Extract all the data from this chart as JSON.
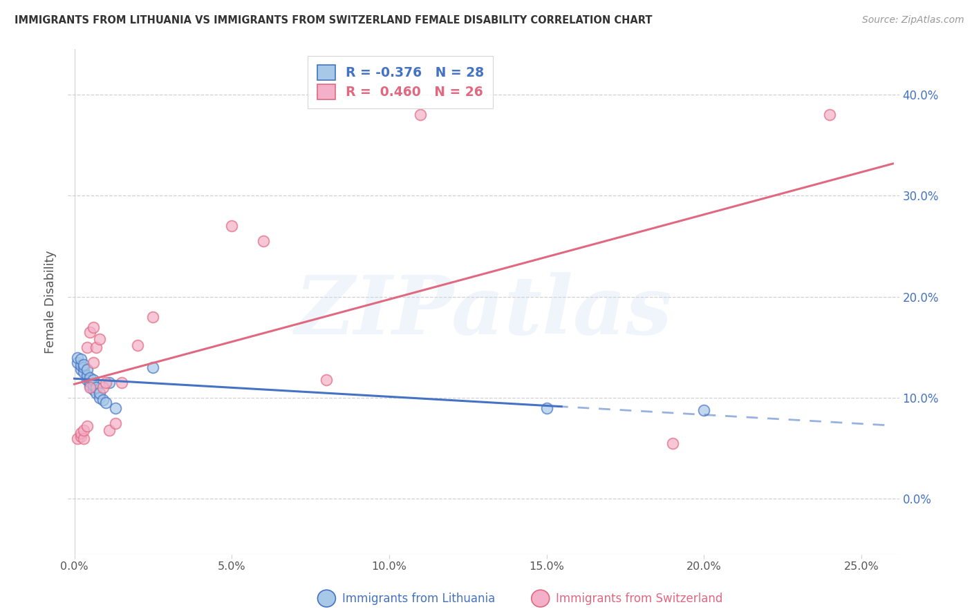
{
  "title": "IMMIGRANTS FROM LITHUANIA VS IMMIGRANTS FROM SWITZERLAND FEMALE DISABILITY CORRELATION CHART",
  "source": "Source: ZipAtlas.com",
  "ylabel": "Female Disability",
  "xlim": [
    -0.002,
    0.262
  ],
  "ylim": [
    -0.055,
    0.445
  ],
  "xlabel_vals": [
    0.0,
    0.05,
    0.1,
    0.15,
    0.2,
    0.25
  ],
  "xlabel_labels": [
    "0.0%",
    "5.0%",
    "10.0%",
    "15.0%",
    "20.0%",
    "25.0%"
  ],
  "ylabel_vals": [
    0.0,
    0.1,
    0.2,
    0.3,
    0.4
  ],
  "ylabel_labels": [
    "0.0%",
    "10.0%",
    "20.0%",
    "30.0%",
    "40.0%"
  ],
  "legend_line1": "R = -0.376   N = 28",
  "legend_line2": "R =  0.460   N = 26",
  "color_lith_fill": "#a8c8e8",
  "color_lith_edge": "#4472c4",
  "color_swiss_fill": "#f4b0c8",
  "color_swiss_edge": "#e06880",
  "watermark_text": "ZIPatlas",
  "lith_label": "Immigrants from Lithuania",
  "swiss_label": "Immigrants from Switzerland",
  "lith_x": [
    0.001,
    0.001,
    0.002,
    0.002,
    0.002,
    0.003,
    0.003,
    0.003,
    0.004,
    0.004,
    0.004,
    0.005,
    0.005,
    0.005,
    0.006,
    0.006,
    0.006,
    0.007,
    0.007,
    0.008,
    0.008,
    0.009,
    0.01,
    0.011,
    0.013,
    0.025,
    0.15,
    0.2
  ],
  "lith_y": [
    0.135,
    0.14,
    0.128,
    0.132,
    0.138,
    0.125,
    0.13,
    0.133,
    0.118,
    0.122,
    0.128,
    0.112,
    0.116,
    0.12,
    0.108,
    0.112,
    0.118,
    0.105,
    0.11,
    0.1,
    0.105,
    0.098,
    0.095,
    0.115,
    0.09,
    0.13,
    0.09,
    0.088
  ],
  "swiss_x": [
    0.001,
    0.002,
    0.002,
    0.003,
    0.003,
    0.004,
    0.004,
    0.005,
    0.005,
    0.006,
    0.006,
    0.007,
    0.008,
    0.009,
    0.01,
    0.011,
    0.013,
    0.015,
    0.02,
    0.025,
    0.05,
    0.06,
    0.08,
    0.11,
    0.19,
    0.24
  ],
  "swiss_y": [
    0.06,
    0.062,
    0.065,
    0.06,
    0.068,
    0.072,
    0.15,
    0.11,
    0.165,
    0.135,
    0.17,
    0.15,
    0.158,
    0.11,
    0.115,
    0.068,
    0.075,
    0.115,
    0.152,
    0.18,
    0.27,
    0.255,
    0.118,
    0.38,
    0.055,
    0.38
  ],
  "grid_color": "#d0d0d0",
  "lith_trend_solid_end": 0.155,
  "swiss_trend_solid_end": 0.26
}
